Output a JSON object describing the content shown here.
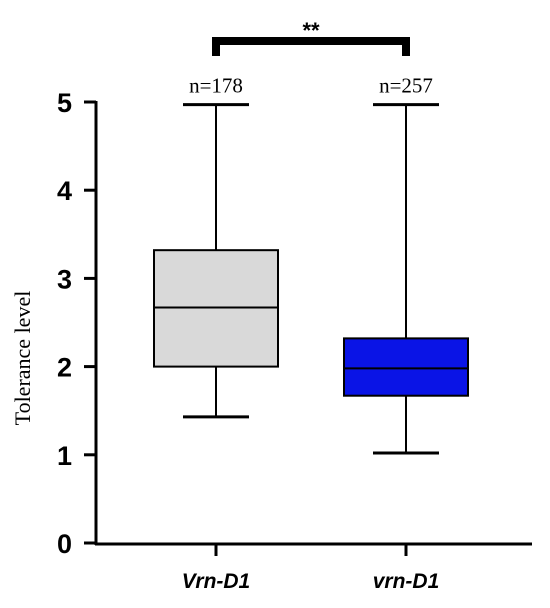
{
  "chart_data": {
    "type": "box",
    "title": "",
    "xlabel": "",
    "ylabel": "Tolerance level",
    "ylim": [
      0,
      5
    ],
    "yticks": [
      "0",
      "1",
      "2",
      "3",
      "4",
      "5"
    ],
    "grid": false,
    "categories": [
      "Vrn-D1",
      "vrn-D1"
    ],
    "series": [
      {
        "category": "Vrn-D1",
        "n_label": "n=178",
        "min": 1.43,
        "q1": 2.0,
        "median": 2.67,
        "q3": 3.32,
        "max": 4.97,
        "color": "#d9d9d9"
      },
      {
        "category": "vrn-D1",
        "n_label": "n=257",
        "min": 1.02,
        "q1": 1.67,
        "median": 1.98,
        "q3": 2.32,
        "max": 4.97,
        "color": "#0a14e6"
      }
    ],
    "significance": {
      "label": "**",
      "between": [
        "Vrn-D1",
        "vrn-D1"
      ]
    }
  }
}
